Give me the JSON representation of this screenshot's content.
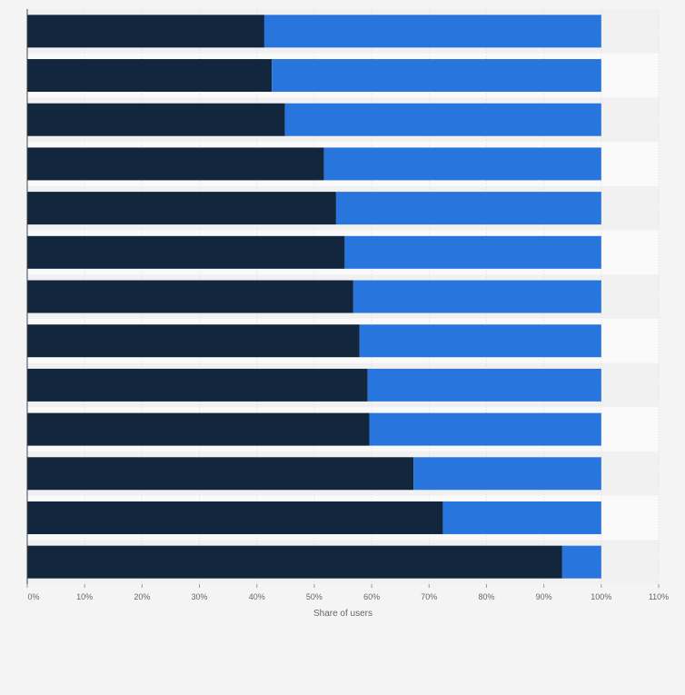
{
  "chart_data": {
    "type": "bar",
    "orientation": "horizontal",
    "stacked": true,
    "categories": [
      "",
      "",
      "",
      "",
      "",
      "",
      "",
      "",
      "",
      "",
      "",
      "",
      ""
    ],
    "series": [
      {
        "values": [
          41.3,
          42.6,
          44.9,
          51.7,
          53.8,
          55.3,
          56.8,
          57.9,
          59.3,
          59.6,
          67.3,
          72.4,
          93.2
        ]
      },
      {
        "values": [
          58.7,
          57.4,
          55.1,
          48.3,
          46.2,
          44.7,
          43.2,
          42.1,
          40.7,
          40.4,
          32.7,
          27.6,
          6.8
        ]
      }
    ],
    "xlabel": "Share of users",
    "ylabel": "",
    "xlim": [
      0,
      110
    ],
    "xticks": [
      0,
      10,
      20,
      30,
      40,
      50,
      60,
      70,
      80,
      90,
      100,
      110
    ],
    "xtick_labels": [
      "0%",
      "10%",
      "20%",
      "30%",
      "40%",
      "50%",
      "60%",
      "70%",
      "80%",
      "90%",
      "100%",
      "110%"
    ],
    "grid": true,
    "legend": "none",
    "colors": {
      "series_1": "#12263d",
      "series_2": "#2876dd",
      "background": "#f4f4f4",
      "band_light": "#fafafa",
      "band_dark": "#f1f1f1",
      "grid": "#dedede",
      "text": "#666666"
    }
  }
}
